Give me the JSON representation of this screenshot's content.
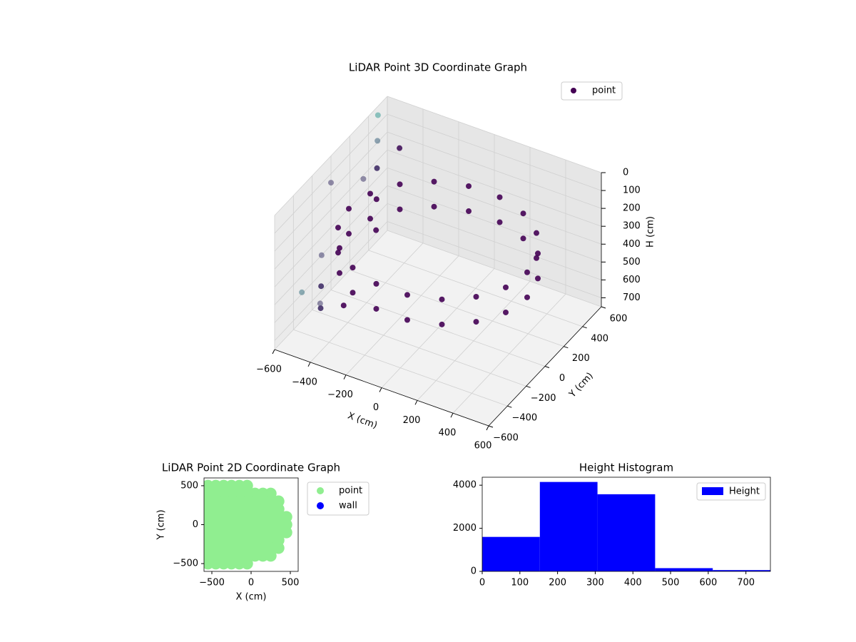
{
  "chart_data": [
    {
      "type": "scatter3d",
      "title": "LiDAR Point 3D Coordinate Graph",
      "xlabel": "X (cm)",
      "ylabel": "Y (cm)",
      "zlabel": "H (cm)",
      "xlim": [
        -600,
        600
      ],
      "ylim": [
        -600,
        600
      ],
      "zlim": [
        0,
        750
      ],
      "zinvert": true,
      "xticks": [
        {
          "value": -600,
          "label": "−600"
        },
        {
          "value": -400,
          "label": "−400"
        },
        {
          "value": -200,
          "label": "−200"
        },
        0,
        200,
        400,
        600
      ],
      "yticks": [
        {
          "value": -600,
          "label": "−600"
        },
        {
          "value": -400,
          "label": "−400"
        },
        {
          "value": -200,
          "label": "−200"
        },
        0,
        200,
        400,
        600
      ],
      "zticks": [
        0,
        100,
        200,
        300,
        400,
        500,
        600,
        700
      ],
      "grid": true,
      "cmap": [
        "#440154",
        "#3aa89a"
      ],
      "series": [
        {
          "name": "point",
          "color": "#440154",
          "x": [
            500,
            470,
            383,
            250,
            87,
            -87,
            -250,
            -383,
            -470,
            -500,
            -470,
            -383,
            -250,
            -87,
            87,
            250,
            383,
            470,
            500,
            470,
            383,
            250,
            87,
            -87,
            -250,
            -383,
            -470,
            -500,
            -470,
            -383,
            -250,
            -87,
            87,
            250,
            383,
            470,
            -600,
            -550,
            -500,
            -450,
            -400,
            -600,
            -550,
            -500,
            -450,
            -600,
            -500,
            -400,
            -550,
            -450
          ],
          "y": [
            0,
            171,
            321,
            433,
            492,
            492,
            433,
            321,
            171,
            0,
            -171,
            -321,
            -433,
            -492,
            -492,
            -433,
            -321,
            -171,
            0,
            171,
            321,
            433,
            492,
            492,
            433,
            321,
            171,
            0,
            -171,
            -321,
            -433,
            -492,
            -492,
            -433,
            -321,
            -171,
            500,
            400,
            300,
            200,
            100,
            -100,
            -200,
            -300,
            -400,
            0,
            -500,
            350,
            250,
            -150
          ],
          "h": [
            260,
            260,
            260,
            260,
            260,
            260,
            260,
            260,
            260,
            260,
            260,
            260,
            260,
            260,
            260,
            260,
            260,
            260,
            400,
            400,
            400,
            400,
            400,
            400,
            400,
            400,
            400,
            400,
            400,
            400,
            400,
            400,
            400,
            400,
            400,
            400,
            50,
            120,
            200,
            300,
            400,
            500,
            600,
            650,
            550,
            150,
            450,
            80,
            250,
            700
          ]
        }
      ]
    },
    {
      "type": "scatter",
      "title": "LiDAR Point 2D Coordinate Graph",
      "xlabel": "X (cm)",
      "ylabel": "Y (cm)",
      "xlim": [
        -600,
        600
      ],
      "ylim": [
        -600,
        600
      ],
      "xticks": [
        {
          "value": -500,
          "label": "−500"
        },
        0,
        500
      ],
      "yticks": [
        {
          "value": -500,
          "label": "−500"
        },
        0,
        500
      ],
      "series": [
        {
          "name": "point",
          "color": "#90ee90",
          "x": [
            -550,
            -450,
            -350,
            -250,
            -150,
            -50,
            -550,
            -450,
            -350,
            -250,
            -150,
            -50,
            50,
            150,
            250,
            -550,
            -450,
            -350,
            -250,
            -150,
            -50,
            50,
            150,
            250,
            350,
            -550,
            -450,
            -350,
            -250,
            -150,
            -50,
            50,
            150,
            250,
            350,
            -550,
            -450,
            -350,
            -250,
            -150,
            -50,
            50,
            150,
            250,
            350,
            450,
            -550,
            -450,
            -350,
            -250,
            -150,
            -50,
            50,
            150,
            250,
            350,
            450,
            -550,
            -450,
            -350,
            -250,
            -150,
            -50,
            50,
            150,
            250,
            350,
            450,
            -550,
            -450,
            -350,
            -250,
            -150,
            -50,
            50,
            150,
            250,
            350,
            -550,
            -450,
            -350,
            -250,
            -150,
            -50,
            50,
            150,
            250,
            350,
            -550,
            -450,
            -350,
            -250,
            -150,
            -50,
            50,
            150,
            250,
            -550,
            -450,
            -350,
            -250,
            -150,
            -50
          ],
          "y": [
            500,
            500,
            500,
            500,
            500,
            500,
            400,
            400,
            400,
            400,
            400,
            400,
            400,
            400,
            400,
            300,
            300,
            300,
            300,
            300,
            300,
            300,
            300,
            300,
            300,
            200,
            200,
            200,
            200,
            200,
            200,
            200,
            200,
            200,
            200,
            100,
            100,
            100,
            100,
            100,
            100,
            100,
            100,
            100,
            100,
            100,
            0,
            0,
            0,
            0,
            0,
            0,
            0,
            0,
            0,
            0,
            0,
            -100,
            -100,
            -100,
            -100,
            -100,
            -100,
            -100,
            -100,
            -100,
            -100,
            -100,
            -200,
            -200,
            -200,
            -200,
            -200,
            -200,
            -200,
            -200,
            -200,
            -200,
            -300,
            -300,
            -300,
            -300,
            -300,
            -300,
            -300,
            -300,
            -300,
            -300,
            -400,
            -400,
            -400,
            -400,
            -400,
            -400,
            -400,
            -400,
            -400,
            -500,
            -500,
            -500,
            -500,
            -500,
            -500
          ]
        },
        {
          "name": "wall",
          "color": "#0000ff",
          "x": [],
          "y": []
        }
      ]
    },
    {
      "type": "hist",
      "title": "Height Histogram",
      "name": "Height",
      "color": "#0000ff",
      "bins": [
        0,
        153,
        306,
        459,
        612,
        765
      ],
      "counts": [
        1600,
        4150,
        3580,
        150,
        60
      ],
      "xlim": [
        0,
        765
      ],
      "ylim": [
        0,
        4370
      ],
      "xticks": [
        0,
        100,
        200,
        300,
        400,
        500,
        600,
        700
      ],
      "yticks": [
        0,
        2000,
        4000
      ]
    }
  ]
}
